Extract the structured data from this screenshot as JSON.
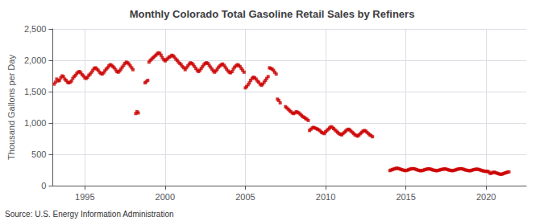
{
  "chart_data": {
    "type": "scatter",
    "title": "Monthly Colorado Total Gasoline Retail Sales by Refiners",
    "ylabel": "Thousand Gallons per Day",
    "annotation": "Source: U.S. Energy Information Administration",
    "color": "#CC0000",
    "marker": "square",
    "grid": true,
    "xlim": [
      1993.0,
      2022.5
    ],
    "xticks": [
      1995,
      2000,
      2005,
      2010,
      2015,
      2020
    ],
    "ylim": [
      0,
      2500
    ],
    "yticks": [
      0,
      500,
      {
        "value": 1000,
        "label": "1,000"
      },
      {
        "value": 1500,
        "label": "1,500"
      },
      {
        "value": 2000,
        "label": "2,000"
      },
      {
        "value": 2500,
        "label": "2,500"
      }
    ],
    "x": [
      1993.08,
      1993.17,
      1993.25,
      1993.33,
      1993.42,
      1993.5,
      1993.58,
      1993.67,
      1993.75,
      1993.83,
      1993.92,
      1994.0,
      1994.08,
      1994.17,
      1994.25,
      1994.33,
      1994.42,
      1994.5,
      1994.58,
      1994.67,
      1994.75,
      1994.83,
      1994.92,
      1995.0,
      1995.08,
      1995.17,
      1995.25,
      1995.33,
      1995.42,
      1995.5,
      1995.58,
      1995.67,
      1995.75,
      1995.83,
      1995.92,
      1996.0,
      1996.08,
      1996.17,
      1996.25,
      1996.33,
      1996.42,
      1996.5,
      1996.58,
      1996.67,
      1996.75,
      1996.83,
      1996.92,
      1997.0,
      1997.08,
      1997.17,
      1997.25,
      1997.33,
      1997.42,
      1997.5,
      1997.58,
      1997.67,
      1997.75,
      1997.83,
      1997.92,
      1998.0,
      1998.17,
      1998.25,
      1998.33,
      1998.75,
      1998.83,
      1998.92,
      1999.0,
      1999.08,
      1999.17,
      1999.25,
      1999.33,
      1999.42,
      1999.5,
      1999.58,
      1999.67,
      1999.75,
      1999.83,
      1999.92,
      2000.0,
      2000.08,
      2000.17,
      2000.25,
      2000.33,
      2000.42,
      2000.5,
      2000.58,
      2000.67,
      2000.75,
      2000.83,
      2000.92,
      2001.0,
      2001.08,
      2001.17,
      2001.25,
      2001.33,
      2001.42,
      2001.5,
      2001.58,
      2001.67,
      2001.75,
      2001.83,
      2001.92,
      2002.0,
      2002.08,
      2002.17,
      2002.25,
      2002.33,
      2002.42,
      2002.5,
      2002.58,
      2002.67,
      2002.75,
      2002.83,
      2002.92,
      2003.0,
      2003.08,
      2003.17,
      2003.25,
      2003.33,
      2003.42,
      2003.5,
      2003.58,
      2003.67,
      2003.75,
      2003.83,
      2003.92,
      2004.0,
      2004.08,
      2004.17,
      2004.25,
      2004.33,
      2004.42,
      2004.5,
      2004.58,
      2004.67,
      2004.75,
      2004.83,
      2004.92,
      2005.0,
      2005.08,
      2005.17,
      2005.25,
      2005.33,
      2005.42,
      2005.5,
      2005.58,
      2005.67,
      2005.75,
      2005.83,
      2005.92,
      2006.0,
      2006.08,
      2006.17,
      2006.25,
      2006.33,
      2006.42,
      2006.5,
      2006.58,
      2006.67,
      2006.75,
      2006.83,
      2006.92,
      2007.0,
      2007.08,
      2007.17,
      2007.5,
      2007.58,
      2007.67,
      2007.75,
      2007.83,
      2007.92,
      2008.0,
      2008.08,
      2008.17,
      2008.25,
      2008.33,
      2008.42,
      2008.5,
      2008.58,
      2008.67,
      2008.75,
      2008.83,
      2008.92,
      2009.0,
      2009.08,
      2009.17,
      2009.25,
      2009.33,
      2009.42,
      2009.5,
      2009.58,
      2009.67,
      2009.75,
      2009.83,
      2009.92,
      2010.0,
      2010.08,
      2010.17,
      2010.25,
      2010.33,
      2010.42,
      2010.5,
      2010.58,
      2010.67,
      2010.75,
      2010.83,
      2010.92,
      2011.0,
      2011.08,
      2011.17,
      2011.25,
      2011.33,
      2011.42,
      2011.5,
      2011.58,
      2011.67,
      2011.75,
      2011.83,
      2011.92,
      2012.0,
      2012.08,
      2012.17,
      2012.25,
      2012.33,
      2012.42,
      2012.5,
      2012.58,
      2012.67,
      2012.75,
      2012.83,
      2012.92,
      2014.0,
      2014.08,
      2014.17,
      2014.25,
      2014.33,
      2014.42,
      2014.5,
      2014.58,
      2014.67,
      2014.75,
      2014.83,
      2014.92,
      2015.0,
      2015.08,
      2015.17,
      2015.25,
      2015.33,
      2015.42,
      2015.5,
      2015.58,
      2015.67,
      2015.75,
      2015.83,
      2015.92,
      2016.0,
      2016.08,
      2016.17,
      2016.25,
      2016.33,
      2016.42,
      2016.5,
      2016.58,
      2016.67,
      2016.75,
      2016.83,
      2016.92,
      2017.0,
      2017.08,
      2017.17,
      2017.25,
      2017.33,
      2017.42,
      2017.5,
      2017.58,
      2017.67,
      2017.75,
      2017.83,
      2017.92,
      2018.0,
      2018.08,
      2018.17,
      2018.25,
      2018.33,
      2018.42,
      2018.5,
      2018.58,
      2018.67,
      2018.75,
      2018.83,
      2018.92,
      2019.0,
      2019.08,
      2019.17,
      2019.25,
      2019.33,
      2019.42,
      2019.5,
      2019.58,
      2019.67,
      2019.75,
      2019.83,
      2019.92,
      2020.0,
      2020.08,
      2020.17,
      2020.25,
      2020.33,
      2020.42,
      2020.5,
      2020.58,
      2020.67,
      2020.75,
      2020.83,
      2020.92,
      2021.0,
      2021.08,
      2021.17,
      2021.25,
      2021.33,
      2021.42
    ],
    "values": [
      1620,
      1650,
      1700,
      1670,
      1680,
      1720,
      1750,
      1740,
      1700,
      1680,
      1650,
      1640,
      1650,
      1670,
      1710,
      1740,
      1760,
      1790,
      1810,
      1820,
      1800,
      1770,
      1750,
      1720,
      1710,
      1730,
      1760,
      1780,
      1810,
      1840,
      1870,
      1880,
      1860,
      1840,
      1810,
      1790,
      1780,
      1800,
      1830,
      1860,
      1880,
      1910,
      1930,
      1920,
      1900,
      1880,
      1850,
      1820,
      1810,
      1830,
      1860,
      1890,
      1920,
      1950,
      1970,
      1960,
      1940,
      1910,
      1880,
      1850,
      1150,
      1180,
      1160,
      1640,
      1660,
      1680,
      1970,
      2000,
      2020,
      2040,
      2060,
      2080,
      2100,
      2120,
      2110,
      2080,
      2040,
      2010,
      1990,
      2010,
      2030,
      2050,
      2060,
      2080,
      2070,
      2050,
      2020,
      2000,
      1970,
      1950,
      1930,
      1900,
      1880,
      1850,
      1880,
      1910,
      1940,
      1960,
      1950,
      1930,
      1900,
      1870,
      1840,
      1820,
      1840,
      1870,
      1900,
      1930,
      1950,
      1960,
      1950,
      1920,
      1890,
      1860,
      1830,
      1810,
      1830,
      1860,
      1890,
      1910,
      1930,
      1940,
      1920,
      1890,
      1860,
      1830,
      1810,
      1800,
      1820,
      1860,
      1890,
      1910,
      1930,
      1920,
      1900,
      1870,
      1840,
      1810,
      1560,
      1580,
      1610,
      1640,
      1680,
      1710,
      1730,
      1720,
      1700,
      1670,
      1650,
      1620,
      1600,
      1620,
      1650,
      1680,
      1710,
      1740,
      1880,
      1870,
      1860,
      1840,
      1810,
      1780,
      1380,
      1360,
      1320,
      1260,
      1240,
      1220,
      1200,
      1180,
      1160,
      1150,
      1160,
      1180,
      1170,
      1160,
      1140,
      1120,
      1100,
      1090,
      1070,
      1060,
      1040,
      880,
      900,
      920,
      930,
      920,
      910,
      900,
      890,
      870,
      850,
      840,
      830,
      860,
      880,
      900,
      920,
      940,
      930,
      910,
      890,
      870,
      850,
      830,
      820,
      810,
      830,
      850,
      870,
      890,
      900,
      890,
      870,
      850,
      830,
      810,
      800,
      790,
      810,
      830,
      850,
      870,
      880,
      870,
      850,
      830,
      810,
      800,
      780,
      240,
      250,
      258,
      265,
      272,
      278,
      275,
      270,
      262,
      255,
      248,
      242,
      240,
      246,
      254,
      262,
      268,
      272,
      270,
      264,
      256,
      248,
      242,
      238,
      240,
      246,
      254,
      260,
      265,
      268,
      266,
      260,
      252,
      246,
      242,
      238,
      242,
      248,
      255,
      260,
      264,
      267,
      264,
      258,
      251,
      245,
      241,
      238,
      244,
      250,
      258,
      264,
      268,
      271,
      268,
      262,
      254,
      248,
      243,
      240,
      237,
      243,
      251,
      257,
      261,
      264,
      261,
      255,
      247,
      240,
      234,
      230,
      226,
      230,
      218,
      195,
      200,
      210,
      215,
      208,
      200,
      192,
      185,
      180,
      185,
      192,
      202,
      208,
      215,
      220
    ]
  }
}
